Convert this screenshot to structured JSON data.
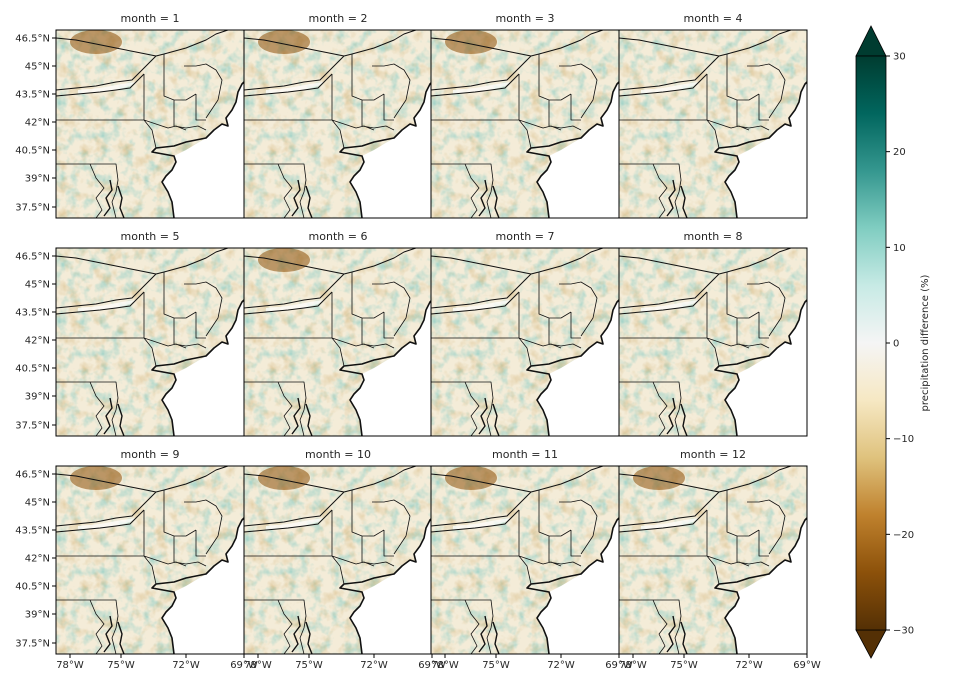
{
  "figure": {
    "panel_titles": [
      "month = 1",
      "month = 2",
      "month = 3",
      "month = 4",
      "month = 5",
      "month = 6",
      "month = 7",
      "month = 8",
      "month = 9",
      "month = 10",
      "month = 11",
      "month = 12"
    ],
    "lat_ticks": [
      "46.5°N",
      "45°N",
      "43.5°N",
      "42°N",
      "40.5°N",
      "39°N",
      "37.5°N"
    ],
    "lon_ticks": [
      "78°W",
      "75°W",
      "72°W",
      "69°W"
    ]
  },
  "colorbar": {
    "label": "precipitation difference (%)",
    "ticks": [
      "30",
      "20",
      "10",
      "0",
      "−10",
      "−20",
      "−30"
    ],
    "colormap": "BrBG",
    "colors": [
      "#543005",
      "#8c510a",
      "#bf812d",
      "#dfc27d",
      "#f6e8c3",
      "#f5f5f5",
      "#c7eae5",
      "#80cdc1",
      "#35978f",
      "#01665e",
      "#003c30"
    ]
  },
  "map_colors": {
    "water": "#ffffff",
    "land_base": "#f4ecd8",
    "border": "#111111"
  }
}
